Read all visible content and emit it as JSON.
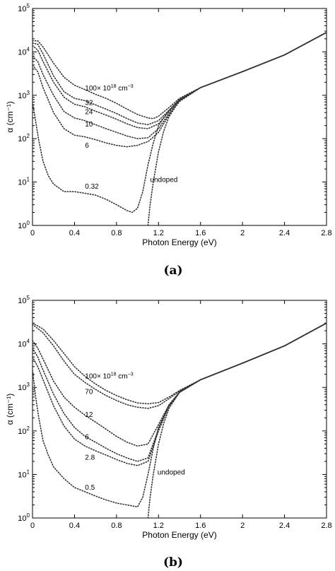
{
  "chart_data": [
    {
      "type": "line",
      "panel_label": "(a)",
      "xlabel": "Photon Energy (eV)",
      "ylabel": "α (cm⁻¹)",
      "xlim": [
        0,
        2.8
      ],
      "ylim": [
        1,
        100000
      ],
      "yscale": "log",
      "grid": false,
      "xticks": [
        "0",
        "0.4",
        "0.8",
        "1.2",
        "1.6",
        "2",
        "2.4",
        "2.8"
      ],
      "yticks": [
        {
          "base": "10",
          "exp": "0"
        },
        {
          "base": "10",
          "exp": "1"
        },
        {
          "base": "10",
          "exp": "2"
        },
        {
          "base": "10",
          "exp": "3"
        },
        {
          "base": "10",
          "exp": "4"
        },
        {
          "base": "10",
          "exp": "5"
        }
      ],
      "series": [
        {
          "name": "100×10¹⁸ cm⁻³",
          "label_parts": [
            "100× 10",
            "18",
            " cm",
            "−3"
          ],
          "label_x": 0.5,
          "label_y": 1300,
          "x": [
            0,
            0.05,
            0.1,
            0.2,
            0.3,
            0.4,
            0.5,
            0.6,
            0.7,
            0.8,
            0.9,
            1.0,
            1.1,
            1.15,
            1.2,
            1.3,
            1.4,
            1.6,
            2.0,
            2.4,
            2.8
          ],
          "y": [
            18000,
            18000,
            13000,
            5500,
            2600,
            1700,
            1350,
            1050,
            850,
            650,
            480,
            360,
            300,
            290,
            330,
            520,
            850,
            1500,
            3500,
            8500,
            28000
          ]
        },
        {
          "name": "32",
          "label_parts": [
            "32"
          ],
          "label_x": 0.5,
          "label_y": 600,
          "x": [
            0,
            0.05,
            0.1,
            0.2,
            0.3,
            0.4,
            0.5,
            0.6,
            0.7,
            0.8,
            0.9,
            1.0,
            1.1,
            1.2,
            1.3,
            1.4,
            1.6,
            2.0,
            2.4,
            2.8
          ],
          "y": [
            16000,
            15000,
            9000,
            2800,
            1200,
            850,
            750,
            600,
            480,
            380,
            290,
            230,
            210,
            260,
            450,
            800,
            1500,
            3500,
            8500,
            28000
          ]
        },
        {
          "name": "24",
          "label_parts": [
            "24"
          ],
          "label_x": 0.5,
          "label_y": 370,
          "x": [
            0,
            0.05,
            0.1,
            0.2,
            0.3,
            0.4,
            0.5,
            0.6,
            0.7,
            0.8,
            0.9,
            1.0,
            1.1,
            1.2,
            1.3,
            1.4,
            1.6,
            2.0,
            2.4,
            2.8
          ],
          "y": [
            14000,
            11000,
            6000,
            2000,
            900,
            620,
            540,
            430,
            350,
            280,
            220,
            180,
            170,
            220,
            420,
            780,
            1500,
            3500,
            8500,
            28000
          ]
        },
        {
          "name": "10",
          "label_parts": [
            "10"
          ],
          "label_x": 0.5,
          "label_y": 190,
          "x": [
            0,
            0.05,
            0.1,
            0.2,
            0.3,
            0.4,
            0.5,
            0.6,
            0.7,
            0.8,
            0.9,
            1.0,
            1.1,
            1.2,
            1.3,
            1.4,
            1.6,
            2.0,
            2.4,
            2.8
          ],
          "y": [
            8000,
            6000,
            3000,
            1000,
            420,
            300,
            260,
            210,
            170,
            140,
            115,
            100,
            105,
            170,
            380,
            760,
            1500,
            3500,
            8500,
            28000
          ]
        },
        {
          "name": "6",
          "label_parts": [
            "6"
          ],
          "label_x": 0.5,
          "label_y": 62,
          "x": [
            0,
            0.05,
            0.1,
            0.2,
            0.3,
            0.4,
            0.5,
            0.6,
            0.7,
            0.8,
            0.9,
            1.0,
            1.05,
            1.1,
            1.2,
            1.3,
            1.4,
            1.6,
            2.0,
            2.4,
            2.8
          ],
          "y": [
            5000,
            3500,
            1500,
            400,
            170,
            120,
            110,
            95,
            80,
            70,
            65,
            70,
            78,
            85,
            140,
            350,
            720,
            1500,
            3500,
            8500,
            28000
          ]
        },
        {
          "name": "0.32",
          "label_parts": [
            "0.32"
          ],
          "label_x": 0.5,
          "label_y": 7,
          "x": [
            0,
            0.03,
            0.06,
            0.1,
            0.15,
            0.2,
            0.3,
            0.4,
            0.5,
            0.6,
            0.7,
            0.8,
            0.9,
            0.95,
            1.0,
            1.05,
            1.1,
            1.15,
            1.2,
            1.3,
            1.4,
            1.6,
            2.0,
            2.4,
            2.8
          ],
          "y": [
            700,
            250,
            90,
            30,
            14,
            9,
            6,
            6,
            5.5,
            5,
            4,
            3,
            2.2,
            2,
            2.5,
            6,
            25,
            80,
            200,
            450,
            800,
            1500,
            3500,
            8500,
            28000
          ]
        },
        {
          "name": "undoped",
          "label_parts": [
            "undoped"
          ],
          "label_x": 1.12,
          "label_y": 10,
          "x": [
            1.1,
            1.12,
            1.15,
            1.2,
            1.25,
            1.3,
            1.4,
            1.6,
            2.0,
            2.4,
            2.8
          ],
          "y": [
            1,
            3,
            10,
            50,
            150,
            320,
            750,
            1500,
            3500,
            8500,
            28000
          ]
        }
      ]
    },
    {
      "type": "line",
      "panel_label": "(b)",
      "xlabel": "Photon Energy (eV)",
      "ylabel": "α (cm⁻¹)",
      "xlim": [
        0,
        2.8
      ],
      "ylim": [
        1,
        100000
      ],
      "yscale": "log",
      "grid": false,
      "xticks": [
        "0",
        "0.4",
        "0.8",
        "1.2",
        "1.6",
        "2",
        "2.4",
        "2.8"
      ],
      "yticks": [
        {
          "base": "10",
          "exp": "0"
        },
        {
          "base": "10",
          "exp": "1"
        },
        {
          "base": "10",
          "exp": "2"
        },
        {
          "base": "10",
          "exp": "3"
        },
        {
          "base": "10",
          "exp": "4"
        },
        {
          "base": "10",
          "exp": "5"
        }
      ],
      "series": [
        {
          "name": "100×10¹⁸ cm⁻³",
          "label_parts": [
            "100× 10",
            "18",
            " cm",
            "−3"
          ],
          "label_x": 0.5,
          "label_y": 1600,
          "x": [
            0,
            0.1,
            0.2,
            0.3,
            0.4,
            0.5,
            0.6,
            0.7,
            0.8,
            0.9,
            1.0,
            1.1,
            1.2,
            1.3,
            1.4,
            1.6,
            2.0,
            2.4,
            2.8
          ],
          "y": [
            30000,
            22000,
            12000,
            6000,
            3000,
            1800,
            1200,
            850,
            650,
            520,
            440,
            420,
            450,
            600,
            850,
            1500,
            3600,
            9000,
            30000
          ]
        },
        {
          "name": "70",
          "label_parts": [
            "70"
          ],
          "label_x": 0.5,
          "label_y": 700,
          "x": [
            0,
            0.1,
            0.2,
            0.3,
            0.4,
            0.5,
            0.6,
            0.7,
            0.8,
            0.9,
            1.0,
            1.1,
            1.2,
            1.3,
            1.4,
            1.6,
            2.0,
            2.4,
            2.8
          ],
          "y": [
            28000,
            18000,
            9000,
            4000,
            2000,
            1300,
            900,
            650,
            500,
            400,
            350,
            330,
            380,
            550,
            820,
            1500,
            3600,
            9000,
            30000
          ]
        },
        {
          "name": "12",
          "label_parts": [
            "12"
          ],
          "label_x": 0.5,
          "label_y": 210,
          "x": [
            0,
            0.05,
            0.1,
            0.2,
            0.3,
            0.4,
            0.5,
            0.6,
            0.7,
            0.8,
            0.9,
            1.0,
            1.1,
            1.2,
            1.3,
            1.4,
            1.6,
            2.0,
            2.4,
            2.8
          ],
          "y": [
            12000,
            8000,
            4500,
            1400,
            600,
            350,
            230,
            160,
            110,
            75,
            55,
            45,
            50,
            140,
            400,
            780,
            1500,
            3600,
            9000,
            30000
          ]
        },
        {
          "name": "6",
          "label_parts": [
            "6"
          ],
          "label_x": 0.5,
          "label_y": 65,
          "x": [
            0,
            0.05,
            0.1,
            0.2,
            0.3,
            0.4,
            0.5,
            0.6,
            0.7,
            0.8,
            0.9,
            1.0,
            1.1,
            1.2,
            1.3,
            1.4,
            1.6,
            2.0,
            2.4,
            2.8
          ],
          "y": [
            8000,
            5000,
            2500,
            700,
            250,
            120,
            75,
            55,
            40,
            30,
            24,
            20,
            24,
            110,
            380,
            770,
            1500,
            3600,
            9000,
            30000
          ]
        },
        {
          "name": "2.8",
          "label_parts": [
            "2.8"
          ],
          "label_x": 0.5,
          "label_y": 22,
          "x": [
            0,
            0.05,
            0.1,
            0.2,
            0.3,
            0.4,
            0.5,
            0.6,
            0.7,
            0.8,
            0.9,
            1.0,
            1.1,
            1.2,
            1.3,
            1.4,
            1.6,
            2.0,
            2.4,
            2.8
          ],
          "y": [
            5000,
            3000,
            1500,
            380,
            130,
            65,
            45,
            35,
            28,
            22,
            18,
            16,
            20,
            100,
            370,
            770,
            1500,
            3600,
            9000,
            30000
          ]
        },
        {
          "name": "0.5",
          "label_parts": [
            "0.5"
          ],
          "label_x": 0.5,
          "label_y": 4.5,
          "x": [
            0,
            0.03,
            0.06,
            0.1,
            0.15,
            0.2,
            0.3,
            0.4,
            0.5,
            0.6,
            0.7,
            0.8,
            0.9,
            1.0,
            1.05,
            1.1,
            1.15,
            1.2,
            1.3,
            1.4,
            1.6,
            2.0,
            2.4,
            2.8
          ],
          "y": [
            2500,
            600,
            200,
            60,
            28,
            15,
            8,
            5,
            4,
            3.2,
            2.6,
            2.2,
            2,
            1.8,
            3,
            10,
            40,
            120,
            380,
            780,
            1500,
            3600,
            9000,
            30000
          ]
        },
        {
          "name": "undoped",
          "label_parts": [
            "undoped"
          ],
          "label_x": 1.19,
          "label_y": 10,
          "x": [
            1.1,
            1.12,
            1.15,
            1.2,
            1.25,
            1.3,
            1.4,
            1.6,
            2.0,
            2.4,
            2.8
          ],
          "y": [
            1,
            3,
            10,
            50,
            150,
            330,
            770,
            1500,
            3600,
            9000,
            30000
          ]
        }
      ]
    }
  ]
}
